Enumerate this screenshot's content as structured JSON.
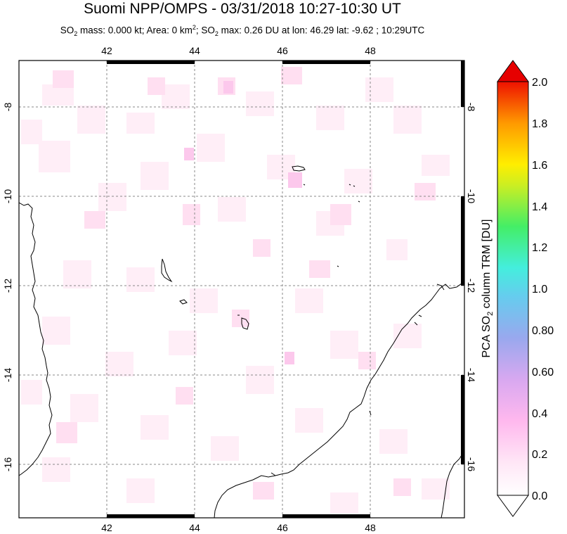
{
  "header": {
    "title": "Suomi NPP/OMPS - 03/31/2018 10:27-10:30 UT",
    "subtitle": {
      "so2_mass_label": "SO",
      "so2_mass_sub": "2",
      "so2_mass_rest": " mass: 0.000 kt; Area: 0 km",
      "area_sup": "2",
      "so2_max_lead": "; SO",
      "so2_max_sub": "2",
      "so2_max_rest": " max: 0.26 DU at lon: 46.29 lat: -9.62 ; 10:29UTC"
    }
  },
  "map": {
    "lon_ticks": [
      "42",
      "44",
      "46",
      "48"
    ],
    "lat_ticks": [
      "-8",
      "-10",
      "-12",
      "-14",
      "-16"
    ]
  },
  "colorbar": {
    "labels": [
      "2.0",
      "1.8",
      "1.6",
      "1.4",
      "1.2",
      "1.0",
      "0.80",
      "0.60",
      "0.4",
      "0.2",
      "0.0"
    ],
    "title_prefix": "PCA SO",
    "title_sub": "2",
    "title_suffix": " column TRM [DU]",
    "colors": {
      "top": "#e60000",
      "orange": "#ff8c00",
      "yellow": "#ffee00",
      "green": "#44ee44",
      "cyan": "#44eedd",
      "blue": "#8899ee",
      "violet": "#cc99ee",
      "pink": "#ffccf0",
      "bottom": "#ffffff"
    }
  }
}
